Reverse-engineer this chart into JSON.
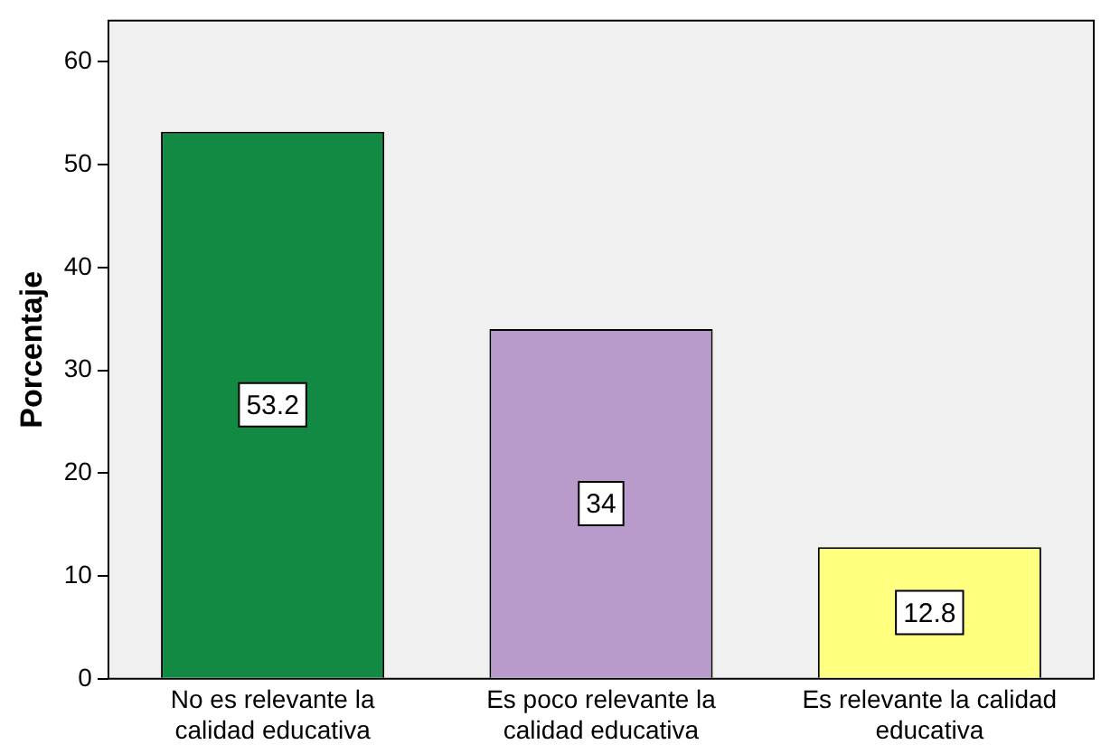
{
  "chart_data": {
    "type": "bar",
    "ylabel": "Porcentaje",
    "categories": [
      "No es relevante la calidad educativa",
      "Es poco relevante la calidad educativa",
      "Es relevante la calidad educativa"
    ],
    "values": [
      53.2,
      34,
      12.8
    ],
    "colors": [
      "#138a43",
      "#b89bcb",
      "#ffff80"
    ],
    "ylim": [
      0,
      64
    ],
    "yticks": [
      0,
      10,
      20,
      30,
      40,
      50,
      60
    ],
    "grid": false,
    "legend": false,
    "data_labels": true
  }
}
